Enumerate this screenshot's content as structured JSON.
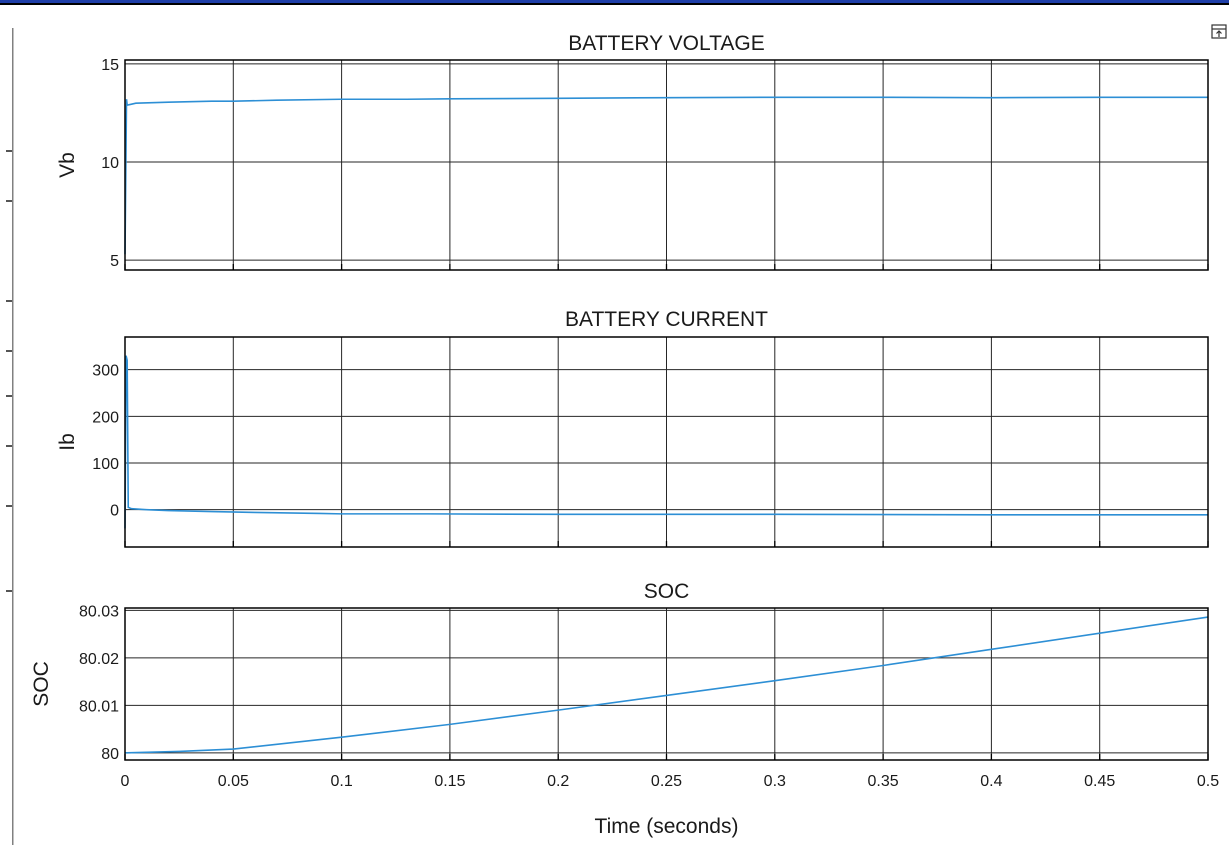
{
  "chart_data": [
    {
      "type": "line",
      "title": "BATTERY VOLTAGE",
      "ylabel": "Vb",
      "xlabel": "",
      "xlim": [
        0,
        0.5
      ],
      "ylim": [
        4.5,
        15.2
      ],
      "yticks": [
        5,
        10,
        15
      ],
      "grid": true,
      "series": [
        {
          "color": "#2d8fd5",
          "x": [
            0,
            0.0007,
            0.001,
            0.003,
            0.005,
            0.02,
            0.04,
            0.05,
            0.07,
            0.1,
            0.13,
            0.15,
            0.2,
            0.25,
            0.3,
            0.35,
            0.4,
            0.45,
            0.5
          ],
          "y": [
            5.3,
            13.2,
            12.9,
            12.95,
            13.0,
            13.05,
            13.1,
            13.1,
            13.15,
            13.2,
            13.2,
            13.22,
            13.25,
            13.28,
            13.3,
            13.3,
            13.28,
            13.3,
            13.3
          ]
        }
      ]
    },
    {
      "type": "line",
      "title": "BATTERY CURRENT",
      "ylabel": "Ib",
      "xlabel": "",
      "xlim": [
        0,
        0.5
      ],
      "ylim": [
        -80,
        370
      ],
      "yticks": [
        0,
        100,
        200,
        300
      ],
      "grid": true,
      "series": [
        {
          "color": "#2d8fd5",
          "x": [
            0,
            0.0005,
            0.001,
            0.0015,
            0.003,
            0.01,
            0.02,
            0.04,
            0.06,
            0.09,
            0.1,
            0.14,
            0.2,
            0.3,
            0.4,
            0.5
          ],
          "y": [
            -40,
            330,
            320,
            5,
            2,
            0,
            -2,
            -4,
            -6,
            -8,
            -9,
            -9,
            -10,
            -10,
            -11,
            -11
          ]
        }
      ]
    },
    {
      "type": "line",
      "title": "SOC",
      "ylabel": "SOC",
      "xlabel": "Time (seconds)",
      "xlim": [
        0,
        0.5
      ],
      "ylim": [
        79.9985,
        80.0305
      ],
      "yticks": [
        80,
        80.01,
        80.02,
        80.03
      ],
      "ytick_labels": [
        "80",
        "80.01",
        "80.02",
        "80.03"
      ],
      "xticks": [
        0,
        0.05,
        0.1,
        0.15,
        0.2,
        0.25,
        0.3,
        0.35,
        0.4,
        0.45,
        0.5
      ],
      "xtick_labels": [
        "0",
        "0.05",
        "0.1",
        "0.15",
        "0.2",
        "0.25",
        "0.3",
        "0.35",
        "0.4",
        "0.45",
        "0.5"
      ],
      "grid": true,
      "series": [
        {
          "color": "#2d8fd5",
          "x": [
            0,
            0.025,
            0.05,
            0.1,
            0.15,
            0.2,
            0.25,
            0.3,
            0.35,
            0.4,
            0.45,
            0.5
          ],
          "y": [
            80.0,
            80.0003,
            80.0008,
            80.0033,
            80.006,
            80.009,
            80.0121,
            80.0152,
            80.0184,
            80.0218,
            80.0252,
            80.0286
          ]
        }
      ]
    }
  ]
}
